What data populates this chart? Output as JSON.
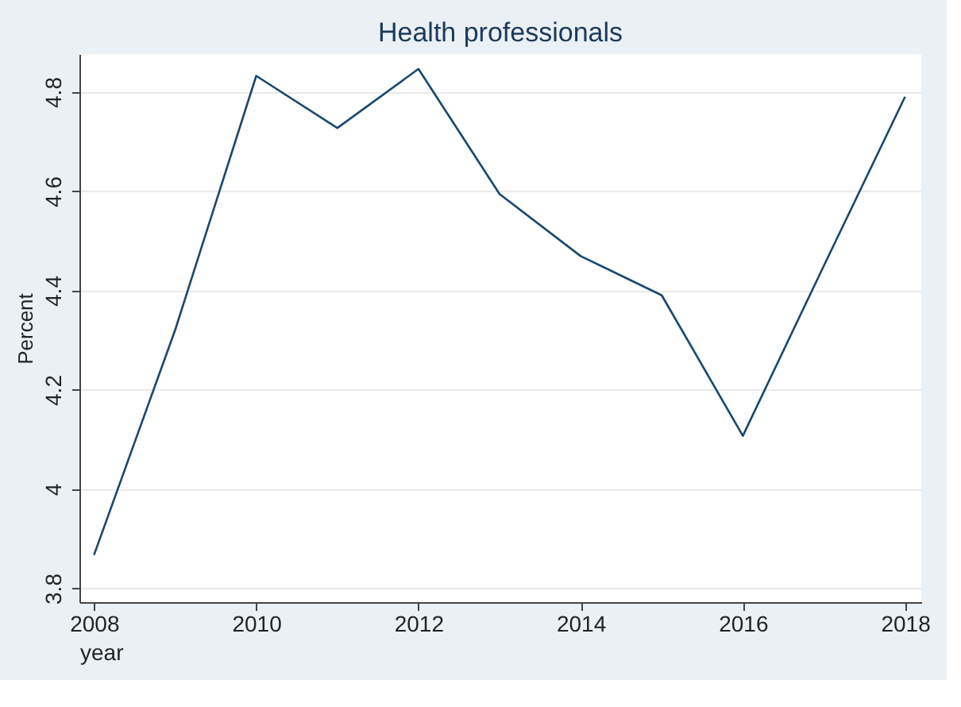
{
  "chart_data": {
    "type": "line",
    "title": "Health professionals",
    "xlabel": "year",
    "ylabel": "Percent",
    "x": [
      2008,
      2009,
      2010,
      2011,
      2012,
      2013,
      2014,
      2015,
      2016,
      2017,
      2018
    ],
    "series": [
      {
        "color": "#1a476f",
        "values": [
          3.867,
          4.32,
          4.832,
          4.727,
          4.846,
          4.594,
          4.469,
          4.39,
          4.107,
          4.45,
          4.79
        ]
      }
    ],
    "xlim": [
      2007.82,
      2018.2
    ],
    "xticks": [
      2008,
      2010,
      2012,
      2014,
      2016,
      2018
    ],
    "ylim": [
      3.772,
      4.876
    ],
    "yticks": [
      3.8,
      4,
      4.2,
      4.4,
      4.6,
      4.8
    ],
    "grid": "y",
    "marker": "none",
    "line_style": "solid"
  }
}
